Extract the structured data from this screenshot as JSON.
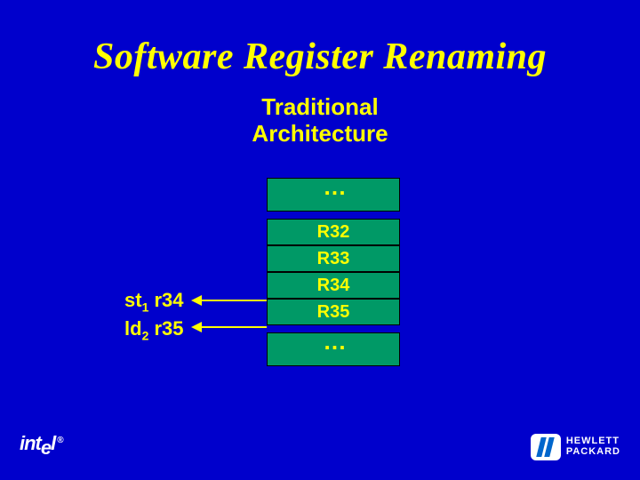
{
  "title": "Software Register Renaming",
  "subtitle_line1": "Traditional",
  "subtitle_line2": "Architecture",
  "boxes": {
    "dots_top": ". . .",
    "r32": "R32",
    "r33": "R33",
    "r34": "R34",
    "r35": "R35",
    "dots_bottom": ". . ."
  },
  "instructions": {
    "st_prefix": "st",
    "st_sub": "1",
    "st_reg": " r34",
    "ld_prefix": "ld",
    "ld_sub": "2",
    "ld_reg": " r35"
  },
  "logos": {
    "intel_prefix": "int",
    "intel_low": "e",
    "intel_suffix": "l",
    "intel_reg": "®",
    "hp_line1": "HEWLETT",
    "hp_line2": "PACKARD"
  },
  "colors": {
    "background": "#0000cc",
    "text": "#ffff00",
    "box_fill": "#009966",
    "box_border": "#000000",
    "logo_text": "#ffffff",
    "hp_blue": "#0066cc"
  }
}
